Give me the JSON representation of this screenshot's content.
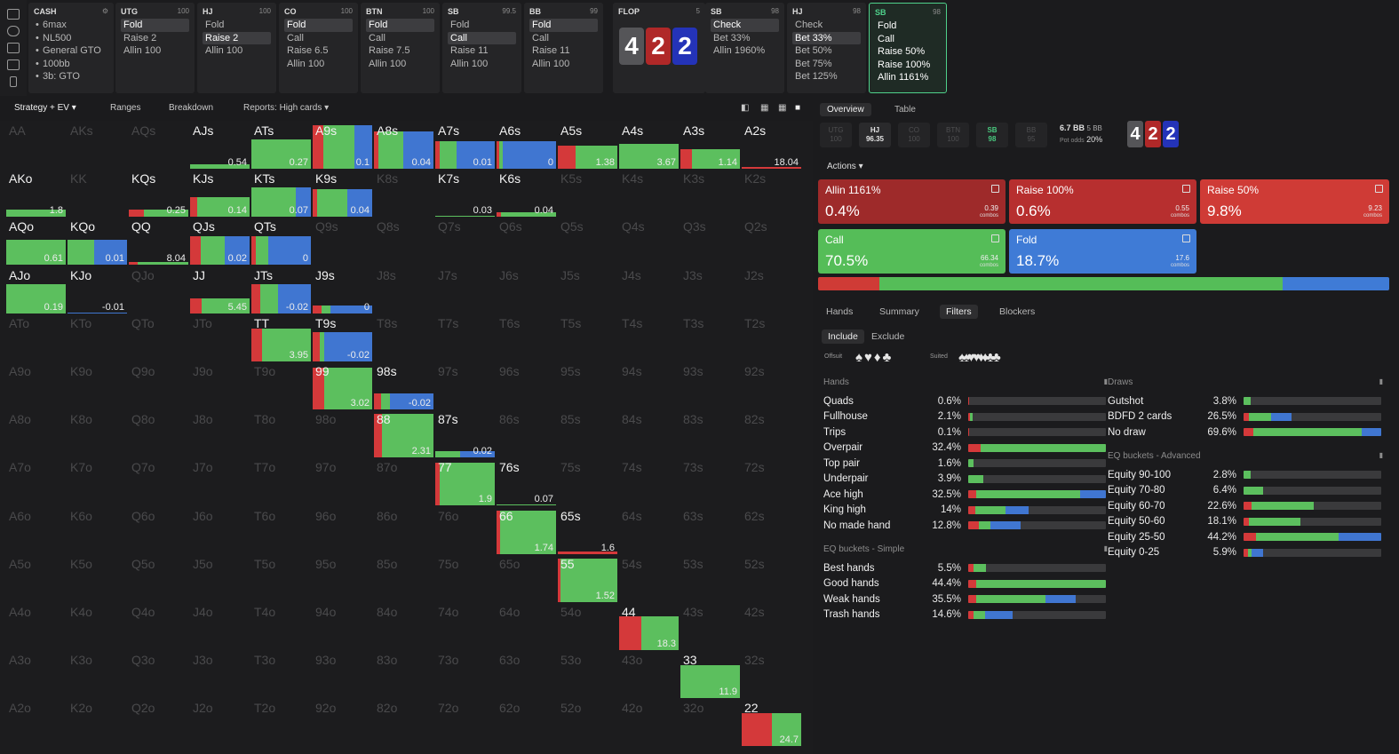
{
  "nav": {
    "cash": {
      "title": "CASH",
      "items": [
        "6max",
        "NL500",
        "General GTO",
        "100bb",
        "3b: GTO"
      ]
    },
    "columns": [
      {
        "pos": "UTG",
        "stack": "100",
        "items": [
          "Fold",
          "Raise 2",
          "Allin 100"
        ],
        "sel": 0
      },
      {
        "pos": "HJ",
        "stack": "100",
        "items": [
          "Fold",
          "Raise 2",
          "Allin 100"
        ],
        "sel": 1
      },
      {
        "pos": "CO",
        "stack": "100",
        "items": [
          "Fold",
          "Call",
          "Raise 6.5",
          "Allin 100"
        ],
        "sel": 0
      },
      {
        "pos": "BTN",
        "stack": "100",
        "items": [
          "Fold",
          "Call",
          "Raise 7.5",
          "Allin 100"
        ],
        "sel": 0
      },
      {
        "pos": "SB",
        "stack": "99.5",
        "items": [
          "Fold",
          "Call",
          "Raise 11",
          "Allin 100"
        ],
        "sel": 1
      },
      {
        "pos": "BB",
        "stack": "99",
        "items": [
          "Fold",
          "Call",
          "Raise 11",
          "Allin 100"
        ],
        "sel": 0
      },
      {
        "pos": "SB",
        "stack": "98",
        "items": [
          "Check",
          "Bet 33%",
          "Allin 1960%"
        ],
        "sel": 0
      },
      {
        "pos": "HJ",
        "stack": "98",
        "items": [
          "Check",
          "Bet 33%",
          "Bet 50%",
          "Bet 75%",
          "Bet 125%"
        ],
        "sel": 1
      },
      {
        "pos": "SB",
        "stack": "98",
        "items": [
          "Fold",
          "Call",
          "Raise 50%",
          "Raise 100%",
          "Allin 1161%"
        ],
        "sel": -1
      }
    ],
    "flop": {
      "label": "FLOP",
      "pot": "5",
      "cards": [
        "4",
        "2",
        "2"
      ]
    }
  },
  "toolbar": {
    "strategy": "Strategy + EV",
    "ranges": "Ranges",
    "breakdown": "Breakdown",
    "reports": "Reports: High cards"
  },
  "grid": {
    "ranks": [
      "A",
      "K",
      "Q",
      "J",
      "T",
      "9",
      "8",
      "7",
      "6",
      "5",
      "4",
      "3",
      "2"
    ],
    "cells": [
      {
        "r": 0,
        "c": 3,
        "h": 0.1,
        "a": [
          0,
          100,
          0
        ],
        "ev": "0.54"
      },
      {
        "r": 0,
        "c": 4,
        "h": 0.62,
        "a": [
          0,
          100,
          0
        ],
        "ev": "0.27"
      },
      {
        "r": 0,
        "c": 5,
        "h": 0.92,
        "a": [
          18,
          52,
          30
        ],
        "ev": "0.1"
      },
      {
        "r": 0,
        "c": 6,
        "h": 0.8,
        "a": [
          8,
          42,
          50
        ],
        "ev": "0.04"
      },
      {
        "r": 0,
        "c": 7,
        "h": 0.58,
        "a": [
          8,
          28,
          64
        ],
        "ev": "0.01"
      },
      {
        "r": 0,
        "c": 8,
        "h": 0.58,
        "a": [
          5,
          5,
          90
        ],
        "ev": "0"
      },
      {
        "r": 0,
        "c": 9,
        "h": 0.5,
        "a": [
          30,
          70,
          0
        ],
        "ev": "1.38"
      },
      {
        "r": 0,
        "c": 10,
        "h": 0.52,
        "a": [
          0,
          100,
          0
        ],
        "ev": "3.67"
      },
      {
        "r": 0,
        "c": 11,
        "h": 0.42,
        "a": [
          20,
          80,
          0
        ],
        "ev": "1.14"
      },
      {
        "r": 0,
        "c": 12,
        "h": 0.04,
        "a": [
          100,
          0,
          0
        ],
        "ev": "18.04"
      },
      {
        "r": 1,
        "c": 0,
        "h": 0.16,
        "a": [
          0,
          100,
          0
        ],
        "ev": "1.8"
      },
      {
        "r": 1,
        "c": 2,
        "h": 0.16,
        "a": [
          25,
          75,
          0
        ],
        "ev": "0.25"
      },
      {
        "r": 1,
        "c": 3,
        "h": 0.42,
        "a": [
          12,
          88,
          0
        ],
        "ev": "0.14"
      },
      {
        "r": 1,
        "c": 4,
        "h": 0.62,
        "a": [
          0,
          75,
          25
        ],
        "ev": "0.07"
      },
      {
        "r": 1,
        "c": 5,
        "h": 0.58,
        "a": [
          8,
          50,
          42
        ],
        "ev": "0.04"
      },
      {
        "r": 1,
        "c": 7,
        "h": 0.03,
        "a": [
          0,
          100,
          0
        ],
        "ev": "0.03"
      },
      {
        "r": 1,
        "c": 8,
        "h": 0.1,
        "a": [
          8,
          92,
          0
        ],
        "ev": "0.04"
      },
      {
        "r": 2,
        "c": 0,
        "h": 0.54,
        "a": [
          0,
          100,
          0
        ],
        "ev": "0.61"
      },
      {
        "r": 2,
        "c": 1,
        "h": 0.54,
        "a": [
          0,
          45,
          55
        ],
        "ev": "0.01"
      },
      {
        "r": 2,
        "c": 2,
        "h": 0.06,
        "a": [
          15,
          85,
          0
        ],
        "ev": "8.04"
      },
      {
        "r": 2,
        "c": 3,
        "h": 0.62,
        "a": [
          18,
          40,
          42
        ],
        "ev": "0.02"
      },
      {
        "r": 2,
        "c": 4,
        "h": 0.62,
        "a": [
          8,
          20,
          72
        ],
        "ev": "0"
      },
      {
        "r": 3,
        "c": 0,
        "h": 0.62,
        "a": [
          0,
          100,
          0
        ],
        "ev": "0.19"
      },
      {
        "r": 3,
        "c": 1,
        "h": 0.02,
        "a": [
          0,
          0,
          100
        ],
        "ev": "-0.01"
      },
      {
        "r": 3,
        "c": 3,
        "h": 0.32,
        "a": [
          20,
          80,
          0
        ],
        "ev": "5.45"
      },
      {
        "r": 3,
        "c": 4,
        "h": 0.62,
        "a": [
          15,
          30,
          55
        ],
        "ev": "-0.02"
      },
      {
        "r": 3,
        "c": 5,
        "h": 0.16,
        "a": [
          15,
          15,
          70
        ],
        "ev": "0"
      },
      {
        "r": 4,
        "c": 4,
        "h": 0.7,
        "a": [
          18,
          82,
          0
        ],
        "ev": "3.95"
      },
      {
        "r": 4,
        "c": 5,
        "h": 0.62,
        "a": [
          12,
          8,
          80
        ],
        "ev": "-0.02"
      },
      {
        "r": 5,
        "c": 5,
        "h": 0.88,
        "a": [
          20,
          80,
          0
        ],
        "ev": "3.02"
      },
      {
        "r": 5,
        "c": 6,
        "h": 0.34,
        "a": [
          12,
          15,
          73
        ],
        "ev": "-0.02"
      },
      {
        "r": 6,
        "c": 6,
        "h": 0.92,
        "a": [
          14,
          86,
          0
        ],
        "ev": "2.31"
      },
      {
        "r": 6,
        "c": 7,
        "h": 0.14,
        "a": [
          0,
          42,
          58
        ],
        "ev": "0.02"
      },
      {
        "r": 7,
        "c": 7,
        "h": 0.92,
        "a": [
          8,
          92,
          0
        ],
        "ev": "1.9"
      },
      {
        "r": 7,
        "c": 8,
        "h": 0.02,
        "a": [
          0,
          100,
          0
        ],
        "ev": "0.07"
      },
      {
        "r": 8,
        "c": 8,
        "h": 0.92,
        "a": [
          6,
          94,
          0
        ],
        "ev": "1.74"
      },
      {
        "r": 8,
        "c": 9,
        "h": 0.05,
        "a": [
          100,
          0,
          0
        ],
        "ev": "1.6"
      },
      {
        "r": 9,
        "c": 9,
        "h": 0.92,
        "a": [
          4,
          96,
          0
        ],
        "ev": "1.52"
      },
      {
        "r": 10,
        "c": 10,
        "h": 0.72,
        "a": [
          38,
          62,
          0
        ],
        "ev": "18.3"
      },
      {
        "r": 11,
        "c": 11,
        "h": 0.7,
        "a": [
          0,
          100,
          0
        ],
        "ev": "11.9"
      },
      {
        "r": 12,
        "c": 12,
        "h": 0.7,
        "a": [
          50,
          50,
          0
        ],
        "ev": "24.7"
      }
    ]
  },
  "right": {
    "tabs": [
      "Overview",
      "Table"
    ],
    "positions": [
      [
        "UTG",
        "100"
      ],
      [
        "HJ",
        "96.35"
      ],
      [
        "CO",
        "100"
      ],
      [
        "BTN",
        "100"
      ],
      [
        "SB",
        "98"
      ],
      [
        "BB",
        "95"
      ]
    ],
    "pot": {
      "bb": "6.7 BB",
      "bb2": "5 BB",
      "odds_label": "Pot odds",
      "odds": "20%"
    },
    "board": [
      "4",
      "2",
      "2"
    ],
    "actions_label": "Actions",
    "actions": [
      {
        "name": "Allin 1161%",
        "pct": "0.4%",
        "combos": "0.39",
        "color": "#9e2a2a"
      },
      {
        "name": "Raise 100%",
        "pct": "0.6%",
        "combos": "0.55",
        "color": "#b72f2f"
      },
      {
        "name": "Raise 50%",
        "pct": "9.8%",
        "combos": "9.23",
        "color": "#cf3b36"
      },
      {
        "name": "Call",
        "pct": "70.5%",
        "combos": "66.34",
        "color": "#55bd58"
      },
      {
        "name": "Fold",
        "pct": "18.7%",
        "combos": "17.6",
        "color": "#3f7bd6"
      }
    ],
    "combos_word": "combos",
    "subtabs": [
      "Hands",
      "Summary",
      "Filters",
      "Blockers"
    ],
    "include": "Include",
    "exclude": "Exclude",
    "offsuit": "Offsuit",
    "suited": "Suited",
    "hands": {
      "title": "Hands",
      "rows": [
        {
          "l": "Quads",
          "p": "0.6%",
          "v": [
            0.4,
            0,
            0
          ]
        },
        {
          "l": "Fullhouse",
          "p": "2.1%",
          "v": [
            1.5,
            1.5,
            0
          ]
        },
        {
          "l": "Trips",
          "p": "0.1%",
          "v": [
            0.2,
            0,
            0
          ]
        },
        {
          "l": "Overpair",
          "p": "32.4%",
          "v": [
            9,
            91,
            0
          ]
        },
        {
          "l": "Top pair",
          "p": "1.6%",
          "v": [
            0,
            4,
            0
          ]
        },
        {
          "l": "Underpair",
          "p": "3.9%",
          "v": [
            0,
            11,
            0
          ]
        },
        {
          "l": "Ace high",
          "p": "32.5%",
          "v": [
            6,
            75,
            19
          ]
        },
        {
          "l": "King high",
          "p": "14%",
          "v": [
            5,
            22,
            17
          ]
        },
        {
          "l": "No made hand",
          "p": "12.8%",
          "v": [
            8,
            8,
            22
          ]
        }
      ]
    },
    "simple": {
      "title": "EQ buckets - Simple",
      "rows": [
        {
          "l": "Best hands",
          "p": "5.5%",
          "v": [
            4,
            9,
            0
          ]
        },
        {
          "l": "Good hands",
          "p": "44.4%",
          "v": [
            6,
            94,
            0
          ]
        },
        {
          "l": "Weak hands",
          "p": "35.5%",
          "v": [
            6,
            50,
            22
          ]
        },
        {
          "l": "Trash hands",
          "p": "14.6%",
          "v": [
            4,
            8,
            20
          ]
        }
      ]
    },
    "draws": {
      "title": "Draws",
      "rows": [
        {
          "l": "Gutshot",
          "p": "3.8%",
          "v": [
            0,
            5,
            0
          ]
        },
        {
          "l": "BDFD 2 cards",
          "p": "26.5%",
          "v": [
            4,
            16,
            15
          ]
        },
        {
          "l": "No draw",
          "p": "69.6%",
          "v": [
            7,
            79,
            14
          ]
        }
      ]
    },
    "advanced": {
      "title": "EQ buckets - Advanced",
      "rows": [
        {
          "l": "Equity 90-100",
          "p": "2.8%",
          "v": [
            0,
            5,
            0
          ]
        },
        {
          "l": "Equity 70-80",
          "p": "6.4%",
          "v": [
            0,
            14,
            0
          ]
        },
        {
          "l": "Equity 60-70",
          "p": "22.6%",
          "v": [
            6,
            45,
            0
          ]
        },
        {
          "l": "Equity 50-60",
          "p": "18.1%",
          "v": [
            4,
            37,
            0
          ]
        },
        {
          "l": "Equity 25-50",
          "p": "44.2%",
          "v": [
            9,
            60,
            31
          ]
        },
        {
          "l": "Equity 0-25",
          "p": "5.9%",
          "v": [
            3,
            3,
            8
          ]
        }
      ]
    }
  },
  "colors": {
    "raise": "#d4393a",
    "call": "#5cbf5e",
    "fold": "#4076d1",
    "active": "#4fd18b"
  }
}
